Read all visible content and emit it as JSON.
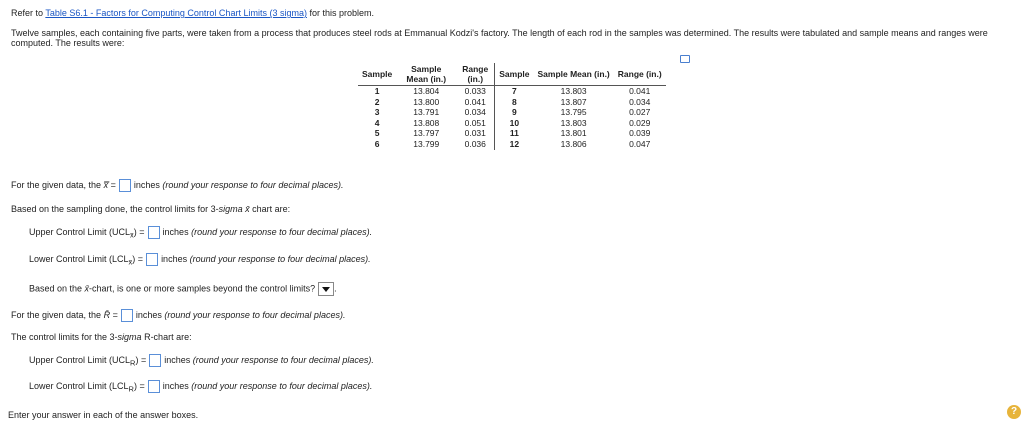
{
  "intro": {
    "prefix": "Refer to ",
    "link_text": "Table S6.1 - Factors for Computing Control Chart Limits (3 sigma)",
    "suffix": " for this problem."
  },
  "problem_text": "Twelve samples, each containing five parts, were taken from a process that produces steel rods at Emmanual Kodzi's factory. The length of each rod in the samples was determined. The results were tabulated and sample means and ranges were computed. The results were:",
  "table": {
    "headers": {
      "sample": "Sample",
      "mean": "Sample Mean (in.)",
      "range": "Range (in.)",
      "sample2": "Sample",
      "mean2": "Sample Mean (in.)",
      "range2": "Range (in.)"
    },
    "rows": [
      {
        "s1": "1",
        "m1": "13.804",
        "r1": "0.033",
        "s2": "7",
        "m2": "13.803",
        "r2": "0.041"
      },
      {
        "s1": "2",
        "m1": "13.800",
        "r1": "0.041",
        "s2": "8",
        "m2": "13.807",
        "r2": "0.034"
      },
      {
        "s1": "3",
        "m1": "13.791",
        "r1": "0.034",
        "s2": "9",
        "m2": "13.795",
        "r2": "0.027"
      },
      {
        "s1": "4",
        "m1": "13.808",
        "r1": "0.051",
        "s2": "10",
        "m2": "13.803",
        "r2": "0.029"
      },
      {
        "s1": "5",
        "m1": "13.797",
        "r1": "0.031",
        "s2": "11",
        "m2": "13.801",
        "r2": "0.039"
      },
      {
        "s1": "6",
        "m1": "13.799",
        "r1": "0.036",
        "s2": "12",
        "m2": "13.806",
        "r2": "0.047"
      }
    ]
  },
  "questions": {
    "xbarbar": {
      "prefix": "For the given data, the ",
      "symbol": "x̿",
      "eq": " =",
      "suffix": "inches",
      "hint": "(round your response to four decimal places)."
    },
    "limits_intro": {
      "prefix": "Based on the sampling done, the control limits for 3-",
      "sigma": "sigma",
      "mid": " ",
      "symbol": "x̄",
      "suffix": " chart are:"
    },
    "ucl_x": {
      "label": "Upper Control Limit (UCL",
      "sub": "x̄",
      "eq": ") =",
      "suffix": "inches",
      "hint": "(round your response to four decimal places)."
    },
    "lcl_x": {
      "label": "Lower Control Limit (LCL",
      "sub": "x̄",
      "eq": ") =",
      "suffix": "inches",
      "hint": "(round your response to four decimal places)."
    },
    "beyond": {
      "prefix": "Based on the ",
      "symbol": "x̄",
      "suffix": "-chart, is one or more samples beyond the control limits?"
    },
    "rbar": {
      "prefix": "For the given data, the ",
      "symbol": "R̄",
      "eq": " =",
      "suffix": "inches",
      "hint": "(round your response to four decimal places)."
    },
    "r_limits_intro": {
      "prefix": "The control limits for the 3-",
      "sigma": "sigma",
      "suffix": " R-chart are:"
    },
    "ucl_r": {
      "label": "Upper Control Limit (UCL",
      "sub": "R",
      "eq": ") =",
      "suffix": "inches",
      "hint": "(round your response to four decimal places)."
    },
    "lcl_r": {
      "label": "Lower Control Limit (LCL",
      "sub": "R",
      "eq": ") =",
      "suffix": "inches",
      "hint": "(round your response to four decimal places)."
    }
  },
  "footer": "Enter your answer in each of the answer boxes.",
  "help_label": "?"
}
